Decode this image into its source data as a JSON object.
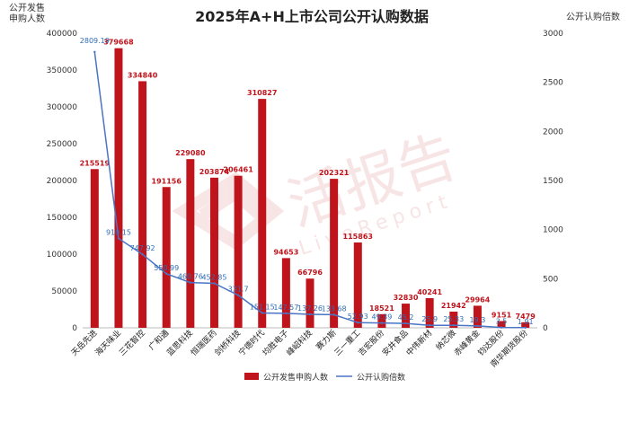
{
  "chart_data": {
    "type": "bar+line",
    "title": "2025年A+H上市公司公开认购数据",
    "left_axis_label_line1": "公开发售",
    "left_axis_label_line2": "申购人数",
    "right_axis_label": "公开认购倍数",
    "categories": [
      "天岳先进",
      "海天味业",
      "三花智控",
      "广和通",
      "蓝思科技",
      "恒瑞医药",
      "剑桥科技",
      "宁德时代",
      "均胜电子",
      "峰岹科技",
      "赛力斯",
      "三一重工",
      "吉宏股份",
      "安井食品",
      "中伟新材",
      "纳芯微",
      "赤峰黄金",
      "钧达股份",
      "南华期货股份"
    ],
    "series": [
      {
        "name": "公开发售申购人数",
        "axis": "left",
        "color": "#c0141c",
        "values": [
          215519,
          379668,
          334840,
          191156,
          229080,
          203874,
          206461,
          310827,
          94653,
          66796,
          202321,
          115863,
          18521,
          32830,
          40241,
          21942,
          29964,
          9151,
          7479
        ],
        "labels": [
          "215519",
          "379668",
          "334840",
          "191156",
          "229080",
          "203874",
          "206461",
          "310827",
          "94653",
          "66796",
          "202321",
          "115863",
          "18521",
          "32830",
          "40241",
          "21942",
          "29964",
          "9151",
          "7479"
        ]
      },
      {
        "name": "公开认购倍数",
        "axis": "right",
        "color": "#4a74c4",
        "values": [
          2809.19,
          910.15,
          747.92,
          550.99,
          460.76,
          452.85,
          331.7,
          151.15,
          147.57,
          137.26,
          133.68,
          52.93,
          49.39,
          45.2,
          25.9,
          25.33,
          19.3,
          3.5,
          1.91
        ],
        "labels": [
          "2809.19",
          "910.15",
          "747.92",
          "550.99",
          "460.76",
          "452.85",
          "331.7",
          "151.15",
          "147.57",
          "137.26",
          "133.68",
          "52.93",
          "49.39",
          "45.2",
          "25.9",
          "25.33",
          "19.3",
          "3.5",
          "1.91"
        ]
      }
    ],
    "y_left": {
      "min": 0,
      "max": 400000,
      "ticks": [
        0,
        50000,
        100000,
        150000,
        200000,
        250000,
        300000,
        350000,
        400000
      ]
    },
    "y_right": {
      "min": 0,
      "max": 3000,
      "ticks": [
        0,
        500,
        1000,
        1500,
        2000,
        2500,
        3000
      ]
    },
    "legend_position": "bottom"
  },
  "watermark": {
    "text_cn": "活报告",
    "text_en": "LiveReport"
  },
  "colors": {
    "bar": "#c0141c",
    "line": "#4a74c4",
    "axis_text": "#333333",
    "value_label": "#c0141c",
    "line_label": "#2f6db5"
  }
}
